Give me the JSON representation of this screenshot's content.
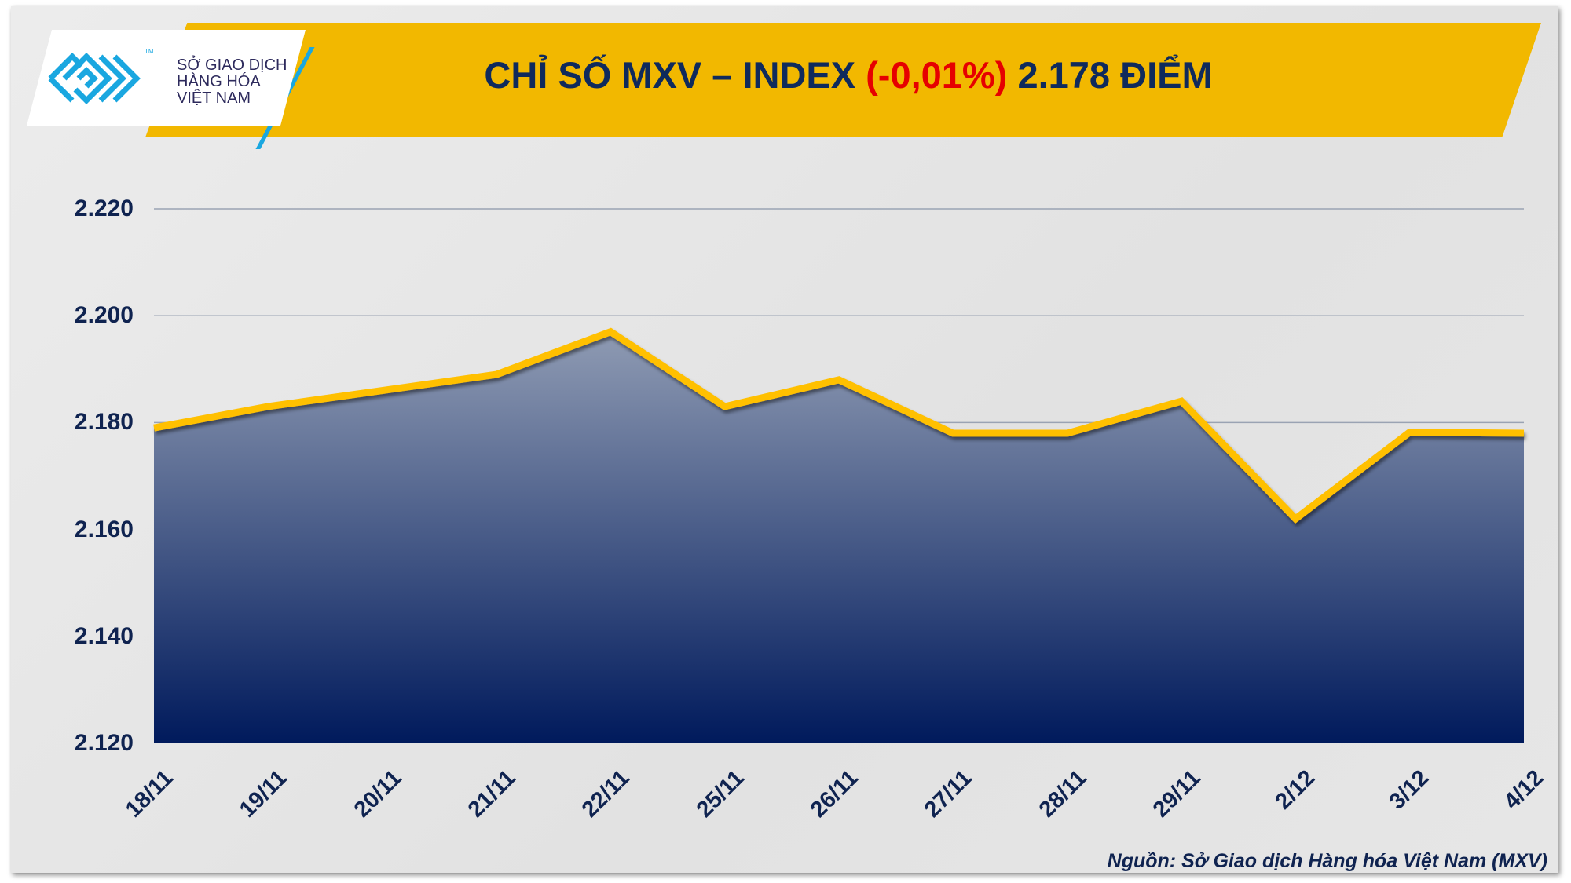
{
  "header": {
    "logo_lines": [
      "SỞ GIAO DỊCH",
      "HÀNG HÓA",
      "VIỆT NAM"
    ],
    "logo_tm": "TM",
    "title_prefix": "CHỈ SỐ MXV – INDEX ",
    "title_change": "(-0,01%)",
    "title_suffix": " 2.178 ĐIỂM"
  },
  "colors": {
    "banner": "#f2b800",
    "line": "#ffc000",
    "area_top": "#8f9bb3",
    "area_bottom": "#001a5c",
    "text": "#0f2350",
    "change": "#e60000",
    "logo": "#1aa7e0"
  },
  "chart_data": {
    "type": "area",
    "title": "CHỈ SỐ MXV – INDEX (-0,01%) 2.178 ĐIỂM",
    "categories": [
      "18/11",
      "19/11",
      "20/11",
      "21/11",
      "22/11",
      "25/11",
      "26/11",
      "27/11",
      "28/11",
      "29/11",
      "2/12",
      "3/12",
      "4/12"
    ],
    "values": [
      2179,
      2183,
      2186,
      2189,
      2197,
      2183,
      2188,
      2178,
      2178,
      2184,
      2162,
      2178.2,
      2178
    ],
    "ylim": [
      2120,
      2220
    ],
    "yticks": [
      2120,
      2140,
      2160,
      2180,
      2200,
      2220
    ],
    "ytick_labels": [
      "2.120",
      "2.140",
      "2.160",
      "2.180",
      "2.200",
      "2.220"
    ],
    "grid": true,
    "xlabel": "",
    "ylabel": ""
  },
  "footer": {
    "source": "Nguồn: Sở Giao dịch Hàng hóa Việt Nam (MXV)"
  }
}
